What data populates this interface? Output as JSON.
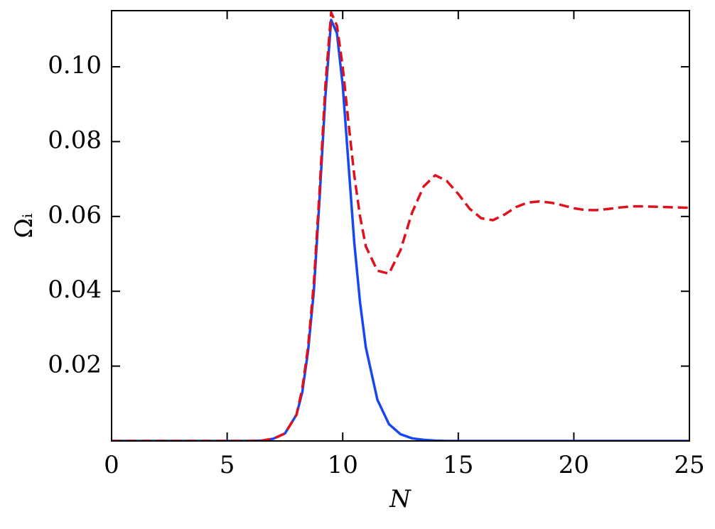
{
  "chart_data": {
    "type": "line",
    "xlabel": "N",
    "ylabel": "Ωᵢ",
    "x": [
      0,
      1,
      2,
      3,
      4,
      5,
      6,
      6.5,
      7,
      7.5,
      8,
      8.25,
      8.5,
      8.75,
      9,
      9.25,
      9.5,
      9.75,
      10,
      10.25,
      10.5,
      10.75,
      11,
      11.5,
      12,
      12.5,
      13,
      13.5,
      14,
      14.5,
      15,
      15.5,
      16,
      16.5,
      17,
      17.5,
      18,
      18.5,
      19,
      19.5,
      20,
      20.5,
      21,
      21.5,
      22,
      22.5,
      23,
      23.5,
      24,
      24.5,
      25
    ],
    "series": [
      {
        "name": "blue",
        "color": "#1747f0",
        "dashed": false,
        "values": [
          0,
          0,
          0,
          0,
          0,
          0,
          0,
          0.0001,
          0.0006,
          0.002,
          0.007,
          0.013,
          0.024,
          0.04,
          0.065,
          0.092,
          0.1125,
          0.109,
          0.095,
          0.074,
          0.053,
          0.037,
          0.025,
          0.011,
          0.0045,
          0.0018,
          0.0007,
          0.0003,
          0.0001,
          0,
          0,
          0,
          0,
          0,
          0,
          0,
          0,
          0,
          0,
          0,
          0,
          0,
          0,
          0,
          0,
          0,
          0,
          0,
          0,
          0,
          0
        ]
      },
      {
        "name": "red",
        "color": "#e0101c",
        "dashed": true,
        "values": [
          0,
          0,
          0,
          0,
          0,
          0,
          0,
          0.0001,
          0.0006,
          0.002,
          0.007,
          0.014,
          0.025,
          0.042,
          0.067,
          0.095,
          0.1145,
          0.111,
          0.1,
          0.085,
          0.071,
          0.06,
          0.052,
          0.0455,
          0.0447,
          0.051,
          0.061,
          0.068,
          0.071,
          0.0695,
          0.066,
          0.062,
          0.0595,
          0.059,
          0.0605,
          0.0625,
          0.0637,
          0.064,
          0.0637,
          0.063,
          0.0622,
          0.0617,
          0.0617,
          0.062,
          0.0624,
          0.0627,
          0.0627,
          0.0626,
          0.0625,
          0.0624,
          0.0623
        ]
      }
    ],
    "xlim": [
      0,
      25
    ],
    "ylim": [
      0,
      0.115
    ],
    "xticks": [
      0,
      5,
      10,
      15,
      20,
      25
    ],
    "yticks": [
      0.02,
      0.04,
      0.06,
      0.08,
      {
        "value": 0.1,
        "label": "0.10"
      }
    ]
  }
}
